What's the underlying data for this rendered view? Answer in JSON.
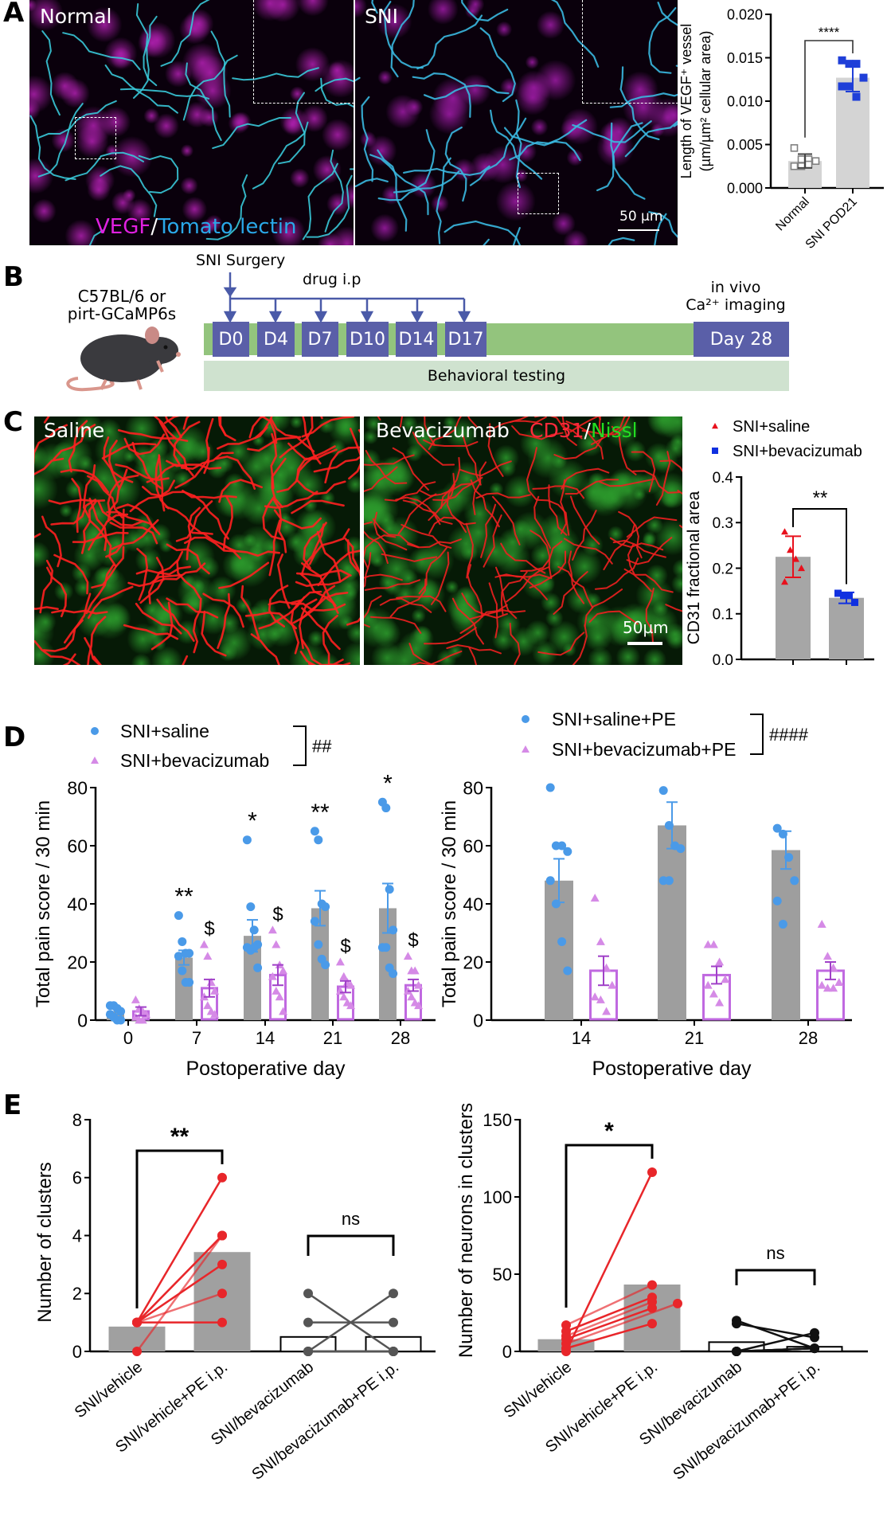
{
  "panels": {
    "a": "A",
    "b": "B",
    "c": "C",
    "d": "D",
    "e": "E"
  },
  "panel_a_images": {
    "left_title": "Normal",
    "right_title": "SNI",
    "stain_1": "VEGF",
    "stain_sep": "/",
    "stain_2": "Tomato lectin",
    "scale_bar": "50 µm"
  },
  "panel_b": {
    "mouse_label_1": "C57BL/6 or",
    "mouse_label_2": "pirt-GCaMP6s",
    "surgery": "SNI Surgery",
    "drug": "drug i.p",
    "imaging_1": "in vivo",
    "imaging_2": "Ca²⁺ imaging",
    "days": [
      "D0",
      "D4",
      "D7",
      "D10",
      "D14",
      "D17"
    ],
    "final_day": "Day 28",
    "behavior": "Behavioral testing",
    "colors": {
      "box": "#5a5fa8",
      "bar": "#93c47d",
      "behavior": "#cfe2cf",
      "arrow": "#4a5aa8"
    }
  },
  "panel_c_images": {
    "left_title": "Saline",
    "right_title": "Bevacizumab",
    "stain_1": "CD31",
    "stain_sep": "/",
    "stain_2": "Nissl",
    "scale_bar": "50µm"
  },
  "chart_data": [
    {
      "id": "A",
      "type": "bar",
      "ylabel": [
        "Length of VEGF⁺ vessel",
        "(µm/µm² cellular area)"
      ],
      "categories": [
        "Normal",
        "SNI POD21"
      ],
      "ylim": [
        0,
        0.02
      ],
      "yticks": [
        0,
        0.005,
        0.01,
        0.015,
        0.02
      ],
      "yticklabels": [
        "0.000",
        "0.005",
        "0.010",
        "0.015",
        "0.020"
      ],
      "series": [
        {
          "name": "Normal",
          "mean": 0.0031,
          "error": 0.0008,
          "points": [
            0.0046,
            0.0033,
            0.0033,
            0.0031,
            0.0025,
            0.0025,
            0.0027
          ],
          "marker": "open-square",
          "color": "#808080",
          "bar_color": "#d4d4d4"
        },
        {
          "name": "SNI POD21",
          "mean": 0.0127,
          "error": 0.0016,
          "points": [
            0.0147,
            0.0143,
            0.0143,
            0.0127,
            0.0117,
            0.0117,
            0.0105
          ],
          "marker": "square",
          "color": "#1f3fd8",
          "bar_color": "#d4d4d4"
        }
      ],
      "significance": [
        {
          "between": [
            0,
            1
          ],
          "label": "****"
        }
      ]
    },
    {
      "id": "C",
      "type": "bar",
      "ylabel": "CD31 fractional area",
      "legend": [
        {
          "label": "SNI+saline",
          "marker": "triangle",
          "color": "#e8101c"
        },
        {
          "label": "SNI+bevacizumab",
          "marker": "square",
          "color": "#1030e0"
        }
      ],
      "legend_position": "top",
      "ylim": [
        0,
        0.4
      ],
      "yticks": [
        0,
        0.1,
        0.2,
        0.3,
        0.4
      ],
      "yticklabels": [
        "0.0",
        "0.1",
        "0.2",
        "0.3",
        "0.4"
      ],
      "series": [
        {
          "name": "SNI+saline",
          "mean": 0.225,
          "error": 0.045,
          "points": [
            0.28,
            0.24,
            0.22,
            0.2,
            0.17
          ],
          "marker": "triangle",
          "color": "#e8101c",
          "bar_color": "#a6a6a6"
        },
        {
          "name": "SNI+bevacizumab",
          "mean": 0.135,
          "error": 0.012,
          "points": [
            0.145,
            0.14,
            0.14,
            0.125
          ],
          "marker": "square",
          "color": "#1030e0",
          "bar_color": "#a6a6a6"
        }
      ],
      "significance": [
        {
          "between": [
            0,
            1
          ],
          "label": "**"
        }
      ]
    },
    {
      "id": "D-left",
      "type": "bar",
      "xlabel": "Postoperative day",
      "ylabel": "Total pain score / 30 min",
      "categories": [
        "0",
        "7",
        "14",
        "21",
        "28"
      ],
      "ylim": [
        0,
        80
      ],
      "yticks": [
        0,
        20,
        40,
        60,
        80
      ],
      "yticklabels": [
        "0",
        "20",
        "40",
        "60",
        "80"
      ],
      "legend": [
        {
          "label": "SNI+saline",
          "marker": "circle",
          "color": "#4a9ae8"
        },
        {
          "label": "SNI+bevacizumab",
          "marker": "triangle",
          "color": "#d58ae6"
        }
      ],
      "legend_position": "top-left",
      "group_significance": "##",
      "series": [
        {
          "name": "SNI+saline",
          "style": "filled",
          "bar_color": "#9e9e9e",
          "color": "#4a9ae8",
          "marker": "circle",
          "means": [
            3,
            21.5,
            29,
            38.5,
            38.5
          ],
          "errors": [
            1,
            2.5,
            5.5,
            6,
            8.5
          ],
          "points": [
            [
              5,
              5,
              4,
              3,
              2,
              1,
              0,
              0
            ],
            [
              36,
              27,
              23,
              23,
              22,
              17,
              13,
              13
            ],
            [
              62,
              39,
              31,
              26,
              25,
              24,
              25,
              18
            ],
            [
              65,
              62,
              40,
              39,
              34,
              26,
              21,
              19
            ],
            [
              75,
              73,
              45,
              31,
              25,
              25,
              18,
              16
            ]
          ],
          "annotations": [
            "",
            "**",
            "*",
            "**",
            "*"
          ]
        },
        {
          "name": "SNI+bevacizumab",
          "style": "open",
          "bar_color": "#c069e0",
          "color": "#d58ae6",
          "marker": "triangle",
          "means": [
            3,
            11,
            15.5,
            11.5,
            12
          ],
          "errors": [
            1.5,
            3,
            3.5,
            2,
            2
          ],
          "points": [
            [
              7,
              4,
              3,
              2,
              1,
              0,
              0
            ],
            [
              26,
              22,
              13,
              10,
              8,
              5,
              3,
              2
            ],
            [
              31,
              26,
              19,
              17,
              15,
              10,
              8,
              3
            ],
            [
              20,
              15,
              13,
              12,
              10,
              8,
              6,
              5
            ],
            [
              22,
              17,
              17,
              12,
              10,
              8,
              6,
              5
            ]
          ],
          "annotations": [
            "",
            "$",
            "$",
            "$",
            "$"
          ]
        }
      ]
    },
    {
      "id": "D-right",
      "type": "bar",
      "xlabel": "Postoperative day",
      "ylabel": "Total pain score / 30 min",
      "categories": [
        "14",
        "21",
        "28"
      ],
      "ylim": [
        0,
        80
      ],
      "yticks": [
        0,
        20,
        40,
        60,
        80
      ],
      "yticklabels": [
        "0",
        "20",
        "40",
        "60",
        "80"
      ],
      "legend": [
        {
          "label": "SNI+saline+PE",
          "marker": "circle",
          "color": "#4a9ae8"
        },
        {
          "label": "SNI+bevacizumab+PE",
          "marker": "triangle",
          "color": "#d58ae6"
        }
      ],
      "legend_position": "top",
      "group_significance": "####",
      "series": [
        {
          "name": "SNI+saline+PE",
          "style": "filled",
          "bar_color": "#9e9e9e",
          "color": "#4a9ae8",
          "marker": "circle",
          "means": [
            48,
            67,
            58.5
          ],
          "errors": [
            7.5,
            8,
            6.5
          ],
          "points": [
            [
              80,
              60,
              60,
              58,
              48,
              40,
              27,
              17
            ],
            [
              79,
              67,
              60,
              59,
              48,
              48
            ],
            [
              66,
              64,
              56,
              48,
              41,
              33
            ]
          ]
        },
        {
          "name": "SNI+bevacizumab+PE",
          "style": "open",
          "bar_color": "#c069e0",
          "color": "#d58ae6",
          "marker": "triangle",
          "means": [
            17,
            15.5,
            17
          ],
          "errors": [
            5,
            3,
            3
          ],
          "points": [
            [
              42,
              27,
              18,
              12,
              8,
              7,
              3
            ],
            [
              26,
              26,
              20,
              14,
              12,
              9,
              6
            ],
            [
              33,
              22,
              18,
              13,
              12,
              11,
              11
            ]
          ]
        }
      ]
    },
    {
      "id": "E-left",
      "type": "bar",
      "ylabel": "Number of clusters",
      "categories": [
        "SNI/vehicle",
        "SNI/vehicle+PE i.p.",
        "SNI/bevacizumab",
        "SNI/bevacizumab+PE i.p."
      ],
      "ylim": [
        0,
        8
      ],
      "yticks": [
        0,
        2,
        4,
        6,
        8
      ],
      "yticklabels": [
        "0",
        "2",
        "4",
        "6",
        "8"
      ],
      "bars": [
        0.857,
        3.43,
        0.5,
        0.5
      ],
      "bar_styles": [
        "filled",
        "filled",
        "open",
        "open"
      ],
      "pairs": [
        {
          "groups": [
            0,
            1
          ],
          "color": "#e8262a",
          "values": [
            [
              1,
              6
            ],
            [
              0,
              4
            ],
            [
              1,
              4
            ],
            [
              1,
              4
            ],
            [
              1,
              3
            ],
            [
              1,
              2
            ],
            [
              1,
              1
            ]
          ]
        },
        {
          "groups": [
            2,
            3
          ],
          "color": "#555555",
          "values": [
            [
              2,
              0
            ],
            [
              1,
              1
            ],
            [
              0,
              2
            ],
            [
              0,
              0
            ],
            [
              0,
              0
            ],
            [
              0,
              0
            ]
          ]
        }
      ],
      "significance": [
        {
          "between": [
            0,
            1
          ],
          "label": "**"
        },
        {
          "between": [
            2,
            3
          ],
          "label": "ns"
        }
      ]
    },
    {
      "id": "E-right",
      "type": "bar",
      "ylabel": "Number of neurons in clusters",
      "categories": [
        "SNI/vehicle",
        "SNI/vehicle+PE i.p.",
        "SNI/bevacizumab",
        "SNI/bevacizumab+PE i.p."
      ],
      "ylim": [
        0,
        150
      ],
      "yticks": [
        0,
        50,
        100,
        150
      ],
      "yticklabels": [
        "0",
        "50",
        "100",
        "150"
      ],
      "bars": [
        7.9,
        43.3,
        6,
        3
      ],
      "bar_styles": [
        "filled",
        "filled",
        "open",
        "open"
      ],
      "pairs": [
        {
          "groups": [
            0,
            1
          ],
          "color": "#e8262a",
          "values": [
            [
              0,
              116
            ],
            [
              17,
              43
            ],
            [
              13,
              35
            ],
            [
              10,
              32
            ],
            [
              8,
              28
            ],
            [
              5,
              31
            ],
            [
              2,
              18
            ]
          ]
        },
        {
          "groups": [
            2,
            3
          ],
          "color": "#111111",
          "values": [
            [
              20,
              2
            ],
            [
              18,
              9
            ],
            [
              0,
              12
            ],
            [
              0,
              2
            ],
            [
              0,
              2
            ],
            [
              0,
              2
            ]
          ]
        }
      ],
      "significance": [
        {
          "between": [
            0,
            1
          ],
          "label": "*"
        },
        {
          "between": [
            2,
            3
          ],
          "label": "ns"
        }
      ]
    }
  ]
}
